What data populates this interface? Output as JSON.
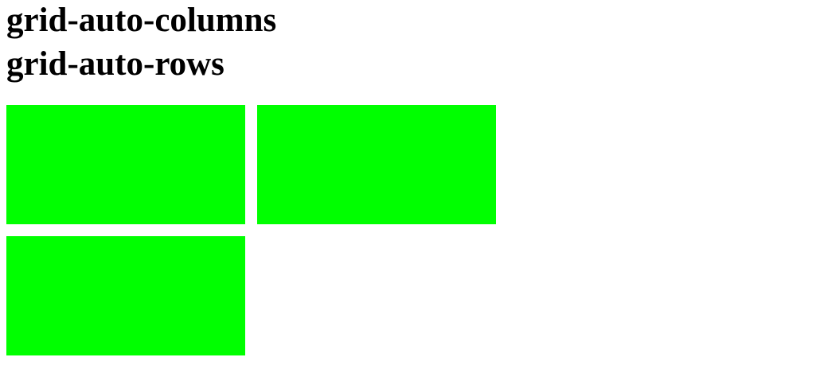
{
  "headings": {
    "columns": "grid-auto-columns",
    "rows": "grid-auto-rows"
  },
  "grid": {
    "item_count": 3,
    "item_color": "#00ff00"
  }
}
